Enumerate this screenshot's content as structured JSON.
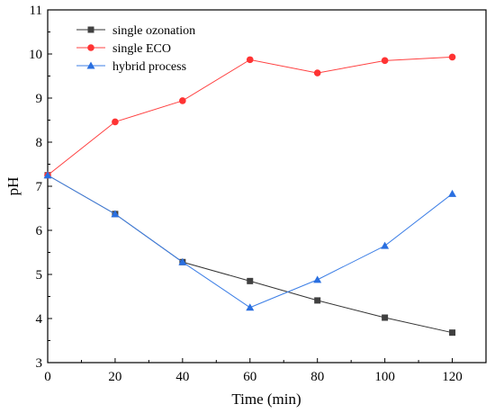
{
  "chart_data": {
    "type": "line",
    "title": "",
    "xlabel": "Time (min)",
    "ylabel": "pH",
    "xlim": [
      0,
      130
    ],
    "ylim": [
      3,
      11
    ],
    "x_ticks": [
      0,
      20,
      40,
      60,
      80,
      100,
      120
    ],
    "x_tick_labels": [
      "0",
      "20",
      "40",
      "60",
      "80",
      "100",
      "120"
    ],
    "y_ticks": [
      3,
      4,
      5,
      6,
      7,
      8,
      9,
      10,
      11
    ],
    "y_tick_labels": [
      "3",
      "4",
      "5",
      "6",
      "7",
      "8",
      "9",
      "10",
      "11"
    ],
    "grid": false,
    "legend_position": "top-left",
    "x": [
      0,
      20,
      40,
      60,
      80,
      100,
      120
    ],
    "series": [
      {
        "name": "single ozonation",
        "marker": "square",
        "color": "#333333",
        "marker_color": "#404040",
        "values": [
          7.25,
          6.37,
          5.28,
          4.85,
          4.41,
          4.02,
          3.68
        ]
      },
      {
        "name": "single ECO",
        "marker": "circle",
        "color": "#ff4040",
        "marker_color": "#ff3333",
        "values": [
          7.25,
          8.46,
          8.94,
          9.87,
          9.57,
          9.85,
          9.93
        ]
      },
      {
        "name": "hybrid process",
        "marker": "triangle",
        "color": "#3d7fe6",
        "marker_color": "#2a6fe0",
        "values": [
          7.25,
          6.37,
          5.28,
          4.25,
          4.88,
          5.65,
          6.83
        ]
      }
    ]
  }
}
